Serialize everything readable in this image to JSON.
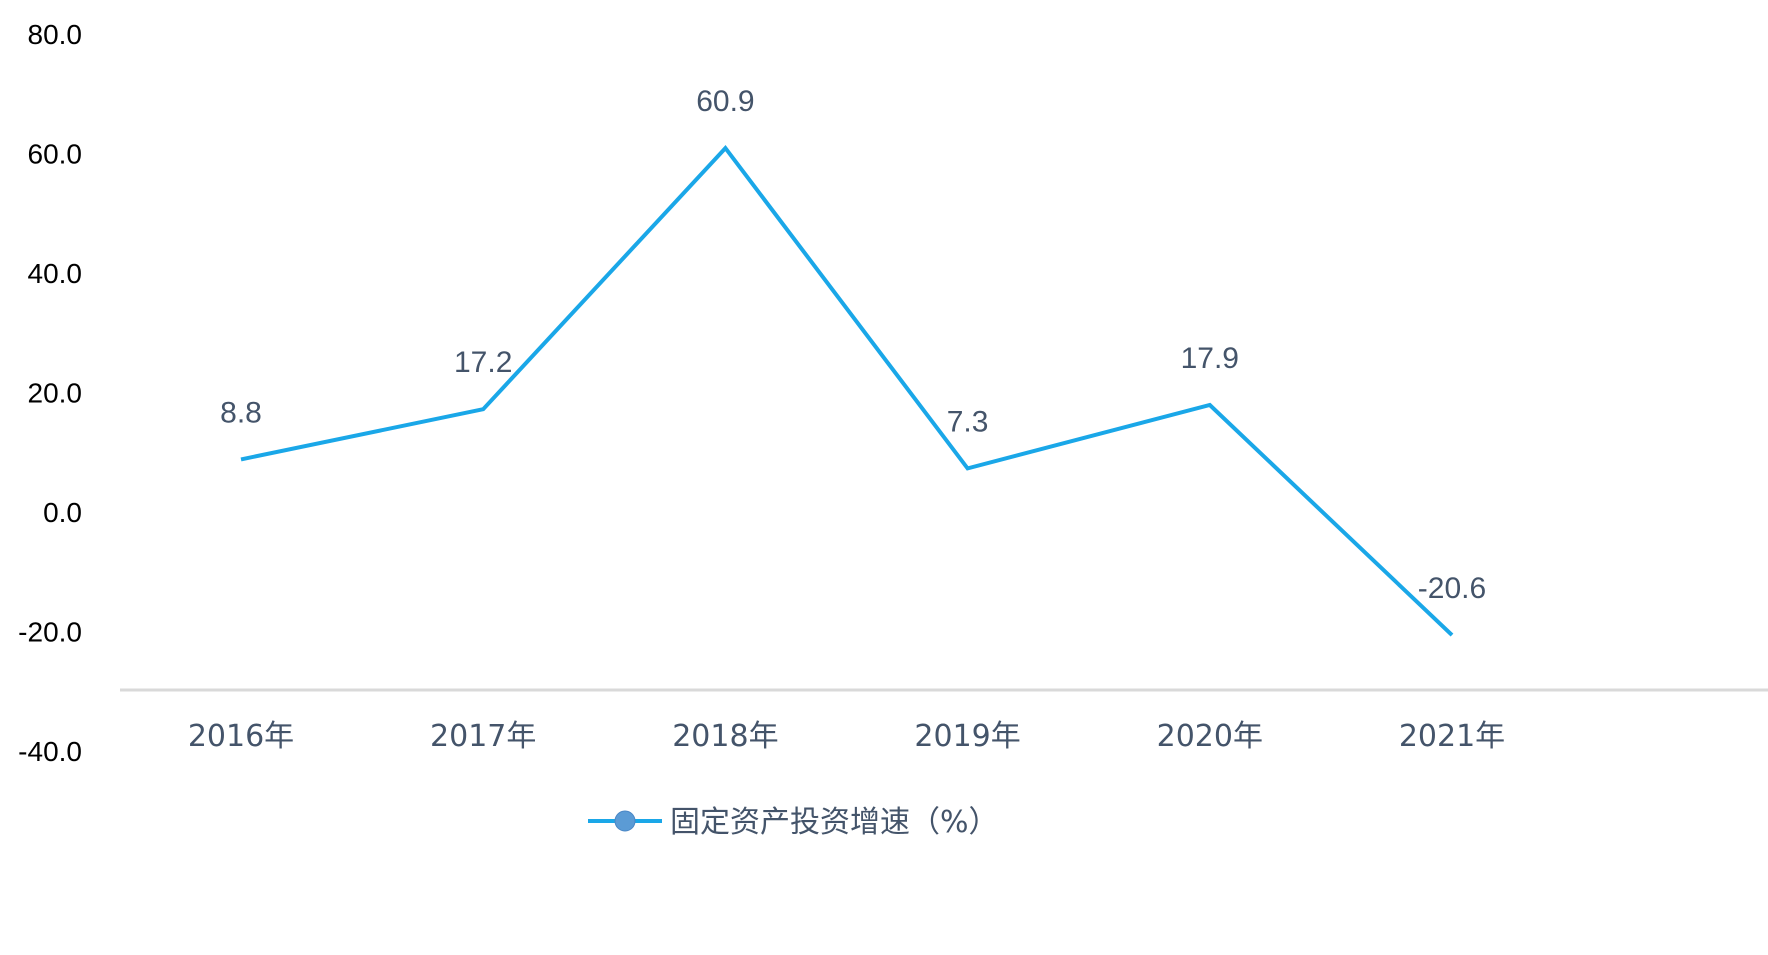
{
  "chart_data": {
    "type": "line",
    "categories": [
      "2016年",
      "2017年",
      "2018年",
      "2019年",
      "2020年",
      "2021年"
    ],
    "series": [
      {
        "name": "固定资产投资增速（%）",
        "values": [
          8.8,
          17.2,
          60.9,
          7.3,
          17.9,
          -20.6
        ],
        "data_labels": [
          "8.8",
          "17.2",
          "60.9",
          "7.3",
          "17.9",
          "-20.6"
        ]
      }
    ],
    "y_ticks": [
      "80.0",
      "60.0",
      "40.0",
      "20.0",
      "0.0",
      "-20.0",
      "-40.0"
    ],
    "y_tick_values": [
      80,
      60,
      40,
      20,
      0,
      -20,
      -40
    ],
    "ylim": [
      -40,
      80
    ],
    "grid": false,
    "legend_position": "bottom",
    "colors": {
      "line": "#1aa7e8",
      "marker": "#5b9bd5",
      "axis": "#d9d9d9",
      "label_text": "#44546a",
      "tick_text": "#000000"
    }
  }
}
